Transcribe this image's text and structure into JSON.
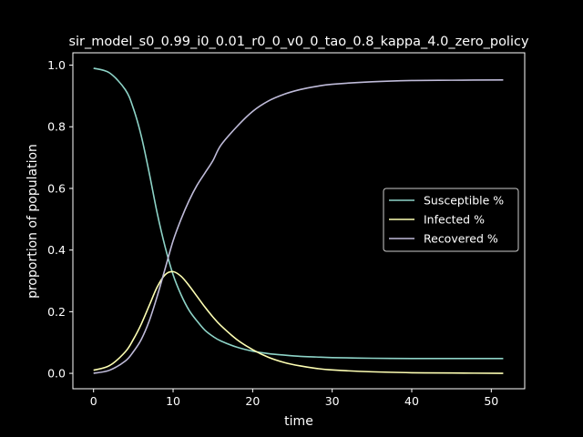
{
  "chart_data": {
    "type": "line",
    "title": "sir_model_s0_0.99_i0_0.01_r0_0_v0_0_tao_0.8_kappa_4.0_zero_policy",
    "xlabel": "time",
    "ylabel": "proportion of population",
    "xlim": [
      -2.6,
      54.2
    ],
    "ylim": [
      -0.05,
      1.04
    ],
    "xticks": [
      0,
      10,
      20,
      30,
      40,
      50
    ],
    "yticks": [
      0.0,
      0.2,
      0.4,
      0.6,
      0.8,
      1.0
    ],
    "xtick_labels": [
      "0",
      "10",
      "20",
      "30",
      "40",
      "50"
    ],
    "ytick_labels": [
      "0.0",
      "0.2",
      "0.4",
      "0.6",
      "0.8",
      "1.0"
    ],
    "grid": false,
    "legend_position": "center-right",
    "x": [
      0,
      2,
      4,
      5,
      6,
      7,
      8,
      9,
      10,
      11,
      12,
      13,
      14,
      15,
      16,
      18,
      20,
      22,
      24,
      26,
      28,
      30,
      35,
      40,
      45,
      51.5
    ],
    "series": [
      {
        "name": "Susceptible %",
        "color": "#8dd3c7",
        "values": [
          0.99,
          0.975,
          0.92,
          0.86,
          0.77,
          0.65,
          0.52,
          0.41,
          0.32,
          0.255,
          0.205,
          0.17,
          0.14,
          0.12,
          0.105,
          0.085,
          0.072,
          0.064,
          0.059,
          0.055,
          0.053,
          0.051,
          0.049,
          0.048,
          0.048,
          0.048
        ]
      },
      {
        "name": "Infected %",
        "color": "#feffb3",
        "values": [
          0.01,
          0.025,
          0.07,
          0.11,
          0.16,
          0.22,
          0.28,
          0.32,
          0.33,
          0.315,
          0.285,
          0.25,
          0.215,
          0.183,
          0.155,
          0.11,
          0.077,
          0.052,
          0.035,
          0.024,
          0.016,
          0.011,
          0.005,
          0.002,
          0.001,
          0.0
        ]
      },
      {
        "name": "Recovered %",
        "color": "#bfbbd9",
        "values": [
          0.0,
          0.01,
          0.04,
          0.07,
          0.11,
          0.17,
          0.25,
          0.34,
          0.43,
          0.5,
          0.56,
          0.61,
          0.65,
          0.69,
          0.74,
          0.8,
          0.85,
          0.884,
          0.906,
          0.921,
          0.931,
          0.938,
          0.946,
          0.95,
          0.951,
          0.952
        ]
      }
    ]
  },
  "colors": {
    "background": "#000000",
    "foreground": "#ffffff"
  }
}
